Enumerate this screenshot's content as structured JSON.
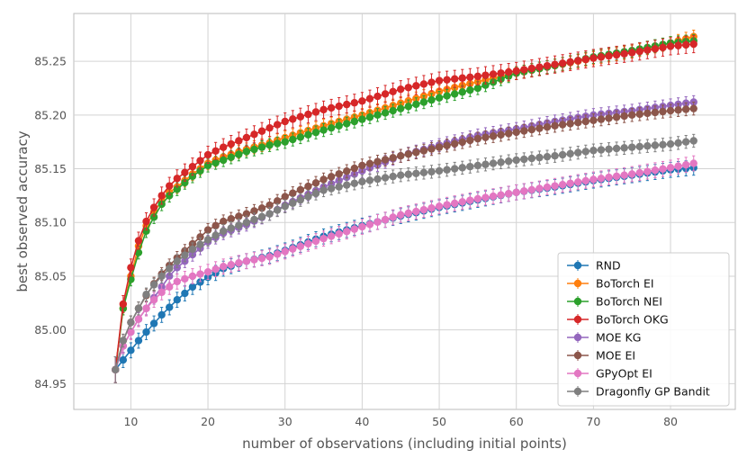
{
  "chart_data": {
    "type": "line",
    "title": "",
    "xlabel": "number of observations (including initial points)",
    "ylabel": "best observed accuracy",
    "xlim": [
      2.6,
      88.4
    ],
    "ylim": [
      84.926,
      85.2945
    ],
    "xticks": [
      10,
      20,
      30,
      40,
      50,
      60,
      70,
      80
    ],
    "yticks": [
      84.95,
      85.0,
      85.05,
      85.1,
      85.15,
      85.2,
      85.25
    ],
    "x_start": 8,
    "x_end": 83,
    "grid": true,
    "legend_position": "lower right",
    "error_bars": true,
    "series": [
      {
        "name": "RND",
        "color": "#1f77b4",
        "anchors": [
          [
            8,
            84.963
          ],
          [
            9,
            84.972
          ],
          [
            10,
            84.981
          ],
          [
            11,
            84.99
          ],
          [
            12,
            84.998
          ],
          [
            13,
            85.006
          ],
          [
            14,
            85.014
          ],
          [
            15,
            85.021
          ],
          [
            16,
            85.028
          ],
          [
            18,
            85.04
          ],
          [
            20,
            85.049
          ],
          [
            22,
            85.057
          ],
          [
            25,
            85.064
          ],
          [
            28,
            85.069
          ],
          [
            30,
            85.074
          ],
          [
            35,
            85.087
          ],
          [
            40,
            85.097
          ],
          [
            45,
            85.106
          ],
          [
            50,
            85.114
          ],
          [
            55,
            85.121
          ],
          [
            60,
            85.128
          ],
          [
            65,
            85.133
          ],
          [
            70,
            85.139
          ],
          [
            75,
            85.144
          ],
          [
            80,
            85.149
          ],
          [
            83,
            85.151
          ]
        ],
        "err": 0.007
      },
      {
        "name": "BoTorch EI",
        "color": "#ff7f0e",
        "anchors": [
          [
            8,
            84.963
          ],
          [
            9,
            85.02
          ],
          [
            10,
            85.05
          ],
          [
            11,
            85.078
          ],
          [
            12,
            85.097
          ],
          [
            13,
            85.11
          ],
          [
            14,
            85.12
          ],
          [
            15,
            85.128
          ],
          [
            16,
            85.133
          ],
          [
            18,
            85.145
          ],
          [
            20,
            85.155
          ],
          [
            22,
            85.161
          ],
          [
            25,
            85.168
          ],
          [
            28,
            85.174
          ],
          [
            30,
            85.179
          ],
          [
            35,
            85.19
          ],
          [
            40,
            85.2
          ],
          [
            45,
            85.211
          ],
          [
            50,
            85.222
          ],
          [
            55,
            85.231
          ],
          [
            60,
            85.239
          ],
          [
            65,
            85.246
          ],
          [
            70,
            85.253
          ],
          [
            75,
            85.259
          ],
          [
            80,
            85.267
          ],
          [
            83,
            85.273
          ]
        ],
        "err": 0.006
      },
      {
        "name": "BoTorch NEI",
        "color": "#2ca02c",
        "anchors": [
          [
            8,
            84.963
          ],
          [
            9,
            85.02
          ],
          [
            10,
            85.047
          ],
          [
            11,
            85.072
          ],
          [
            12,
            85.092
          ],
          [
            13,
            85.105
          ],
          [
            14,
            85.117
          ],
          [
            15,
            85.125
          ],
          [
            16,
            85.131
          ],
          [
            18,
            85.143
          ],
          [
            20,
            85.153
          ],
          [
            22,
            85.158
          ],
          [
            25,
            85.166
          ],
          [
            28,
            85.172
          ],
          [
            30,
            85.175
          ],
          [
            35,
            85.186
          ],
          [
            40,
            85.196
          ],
          [
            45,
            85.206
          ],
          [
            50,
            85.216
          ],
          [
            55,
            85.225
          ],
          [
            60,
            85.239
          ],
          [
            65,
            85.246
          ],
          [
            70,
            85.254
          ],
          [
            75,
            85.26
          ],
          [
            80,
            85.267
          ],
          [
            83,
            85.269
          ]
        ],
        "err": 0.006
      },
      {
        "name": "BoTorch OKG",
        "color": "#d62728",
        "anchors": [
          [
            8,
            84.963
          ],
          [
            9,
            85.024
          ],
          [
            10,
            85.058
          ],
          [
            11,
            85.083
          ],
          [
            12,
            85.101
          ],
          [
            13,
            85.114
          ],
          [
            14,
            85.125
          ],
          [
            15,
            85.134
          ],
          [
            16,
            85.141
          ],
          [
            18,
            85.152
          ],
          [
            20,
            85.163
          ],
          [
            22,
            85.17
          ],
          [
            25,
            85.179
          ],
          [
            28,
            85.188
          ],
          [
            30,
            85.194
          ],
          [
            35,
            85.205
          ],
          [
            40,
            85.213
          ],
          [
            45,
            85.224
          ],
          [
            50,
            85.232
          ],
          [
            55,
            85.236
          ],
          [
            60,
            85.241
          ],
          [
            65,
            85.247
          ],
          [
            70,
            85.253
          ],
          [
            75,
            85.258
          ],
          [
            80,
            85.264
          ],
          [
            83,
            85.266
          ]
        ],
        "err": 0.008
      },
      {
        "name": "MOE KG",
        "color": "#9467bd",
        "anchors": [
          [
            8,
            84.963
          ],
          [
            9,
            84.985
          ],
          [
            10,
            84.998
          ],
          [
            11,
            85.01
          ],
          [
            12,
            85.02
          ],
          [
            13,
            85.03
          ],
          [
            14,
            85.04
          ],
          [
            15,
            85.05
          ],
          [
            16,
            85.058
          ],
          [
            18,
            85.07
          ],
          [
            20,
            85.082
          ],
          [
            22,
            85.09
          ],
          [
            25,
            85.098
          ],
          [
            28,
            85.108
          ],
          [
            30,
            85.116
          ],
          [
            35,
            85.133
          ],
          [
            40,
            85.148
          ],
          [
            45,
            85.162
          ],
          [
            50,
            85.172
          ],
          [
            55,
            85.181
          ],
          [
            60,
            85.187
          ],
          [
            65,
            85.194
          ],
          [
            70,
            85.2
          ],
          [
            75,
            85.204
          ],
          [
            80,
            85.209
          ],
          [
            83,
            85.212
          ]
        ],
        "err": 0.006
      },
      {
        "name": "MOE EI",
        "color": "#8c564b",
        "anchors": [
          [
            8,
            84.963
          ],
          [
            9,
            84.99
          ],
          [
            10,
            85.007
          ],
          [
            11,
            85.02
          ],
          [
            12,
            85.032
          ],
          [
            13,
            85.043
          ],
          [
            14,
            85.052
          ],
          [
            15,
            85.06
          ],
          [
            16,
            85.067
          ],
          [
            18,
            85.08
          ],
          [
            20,
            85.093
          ],
          [
            22,
            85.101
          ],
          [
            25,
            85.108
          ],
          [
            28,
            85.116
          ],
          [
            30,
            85.124
          ],
          [
            35,
            85.14
          ],
          [
            40,
            85.153
          ],
          [
            45,
            85.162
          ],
          [
            50,
            85.17
          ],
          [
            55,
            85.178
          ],
          [
            60,
            85.184
          ],
          [
            65,
            85.19
          ],
          [
            70,
            85.195
          ],
          [
            75,
            85.2
          ],
          [
            80,
            85.204
          ],
          [
            83,
            85.206
          ]
        ],
        "err": 0.006
      },
      {
        "name": "GPyOpt EI",
        "color": "#e377c2",
        "anchors": [
          [
            8,
            84.963
          ],
          [
            9,
            84.985
          ],
          [
            10,
            84.998
          ],
          [
            11,
            85.01
          ],
          [
            12,
            85.02
          ],
          [
            13,
            85.028
          ],
          [
            14,
            85.035
          ],
          [
            15,
            85.04
          ],
          [
            16,
            85.045
          ],
          [
            18,
            85.05
          ],
          [
            20,
            85.054
          ],
          [
            22,
            85.059
          ],
          [
            25,
            85.064
          ],
          [
            28,
            85.068
          ],
          [
            30,
            85.073
          ],
          [
            35,
            85.085
          ],
          [
            40,
            85.096
          ],
          [
            45,
            85.107
          ],
          [
            50,
            85.115
          ],
          [
            55,
            85.122
          ],
          [
            60,
            85.128
          ],
          [
            65,
            85.134
          ],
          [
            70,
            85.14
          ],
          [
            75,
            85.145
          ],
          [
            80,
            85.151
          ],
          [
            83,
            85.155
          ]
        ],
        "err": 0.007
      },
      {
        "name": "Dragonfly GP Bandit",
        "color": "#7f7f7f",
        "anchors": [
          [
            8,
            84.963
          ],
          [
            9,
            84.99
          ],
          [
            10,
            85.007
          ],
          [
            11,
            85.02
          ],
          [
            12,
            85.033
          ],
          [
            13,
            85.042
          ],
          [
            14,
            85.05
          ],
          [
            15,
            85.057
          ],
          [
            16,
            85.064
          ],
          [
            18,
            85.075
          ],
          [
            20,
            85.084
          ],
          [
            22,
            85.092
          ],
          [
            25,
            85.1
          ],
          [
            28,
            85.108
          ],
          [
            30,
            85.115
          ],
          [
            35,
            85.13
          ],
          [
            40,
            85.138
          ],
          [
            45,
            85.144
          ],
          [
            50,
            85.148
          ],
          [
            55,
            85.153
          ],
          [
            60,
            85.158
          ],
          [
            65,
            85.162
          ],
          [
            70,
            85.167
          ],
          [
            75,
            85.17
          ],
          [
            80,
            85.173
          ],
          [
            83,
            85.176
          ]
        ],
        "err": 0.006
      }
    ]
  }
}
